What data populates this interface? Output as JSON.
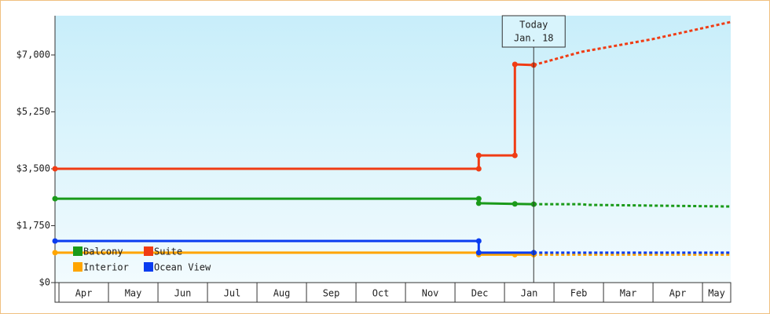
{
  "chart_data": {
    "type": "line",
    "ylim": [
      0,
      8207
    ],
    "yticks": [
      {
        "value": 0,
        "label": "$0"
      },
      {
        "value": 1750,
        "label": "$1,750"
      },
      {
        "value": 3500,
        "label": "$3,500"
      },
      {
        "value": 5250,
        "label": "$5,250"
      },
      {
        "value": 7000,
        "label": "$7,000"
      }
    ],
    "xlim": [
      -0.08,
      13.57
    ],
    "xticks": [
      {
        "value": 0.5,
        "label": "Apr"
      },
      {
        "value": 1.5,
        "label": "May"
      },
      {
        "value": 2.5,
        "label": "Jun"
      },
      {
        "value": 3.5,
        "label": "Jul"
      },
      {
        "value": 4.5,
        "label": "Aug"
      },
      {
        "value": 5.5,
        "label": "Sep"
      },
      {
        "value": 6.5,
        "label": "Oct"
      },
      {
        "value": 7.5,
        "label": "Nov"
      },
      {
        "value": 8.5,
        "label": "Dec"
      },
      {
        "value": 9.5,
        "label": "Jan"
      },
      {
        "value": 10.5,
        "label": "Feb"
      },
      {
        "value": 11.5,
        "label": "Mar"
      },
      {
        "value": 12.5,
        "label": "Apr"
      },
      {
        "value": 13.5,
        "label": "May"
      }
    ],
    "today": {
      "x": 9.59,
      "label": "Today",
      "date": "Jan. 18"
    },
    "series": [
      {
        "name": "Balcony",
        "color": "#1a9a1a",
        "x": [
          -0.08,
          8.48,
          8.48,
          9.21,
          9.59
        ],
        "values": [
          2580,
          2580,
          2440,
          2420,
          2410
        ],
        "forecast_x": [
          9.59,
          10.56,
          10.7,
          13.57
        ],
        "forecast_values": [
          2410,
          2410,
          2390,
          2340
        ]
      },
      {
        "name": "Suite",
        "color": "#f03c14",
        "x": [
          -0.08,
          8.48,
          8.48,
          9.21,
          9.21,
          9.59
        ],
        "values": [
          3500,
          3500,
          3910,
          3910,
          6710,
          6690
        ],
        "forecast_x": [
          9.59,
          10.56,
          11.98,
          13.57
        ],
        "forecast_values": [
          6690,
          7097,
          7483,
          8014
        ]
      },
      {
        "name": "Interior",
        "color": "#ffa500",
        "x": [
          -0.08,
          8.48,
          8.48,
          9.21,
          9.59
        ],
        "values": [
          920,
          920,
          860,
          860,
          860
        ],
        "forecast_x": [
          9.59,
          13.57
        ],
        "forecast_values": [
          860,
          860
        ]
      },
      {
        "name": "Ocean View",
        "color": "#0a3cf0",
        "x": [
          -0.08,
          8.48,
          8.48,
          9.59
        ],
        "values": [
          1280,
          1280,
          920,
          920
        ],
        "forecast_x": [
          9.59,
          13.57
        ],
        "forecast_values": [
          920,
          920
        ]
      }
    ]
  }
}
